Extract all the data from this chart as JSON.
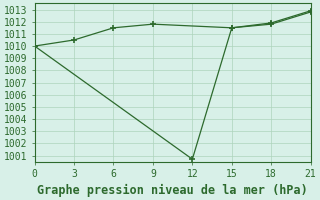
{
  "line1_x": [
    0,
    3,
    6,
    9,
    15,
    18,
    21
  ],
  "line1_y": [
    1010.0,
    1010.5,
    1011.5,
    1011.8,
    1011.5,
    1011.8,
    1012.8
  ],
  "line2_x": [
    0,
    12,
    15,
    18,
    21
  ],
  "line2_y": [
    1010.0,
    1000.7,
    1011.5,
    1011.9,
    1012.9
  ],
  "line_color": "#2d6a2d",
  "marker": "+",
  "background_color": "#d8f0e8",
  "grid_color": "#aed4bc",
  "xlabel": "Graphe pression niveau de la mer (hPa)",
  "xlim": [
    0,
    21
  ],
  "ylim": [
    1000.5,
    1013.5
  ],
  "xticks": [
    0,
    3,
    6,
    9,
    12,
    15,
    18,
    21
  ],
  "yticks": [
    1001,
    1002,
    1003,
    1004,
    1005,
    1006,
    1007,
    1008,
    1009,
    1010,
    1011,
    1012,
    1013
  ],
  "xlabel_fontsize": 8.5,
  "tick_fontsize": 7
}
